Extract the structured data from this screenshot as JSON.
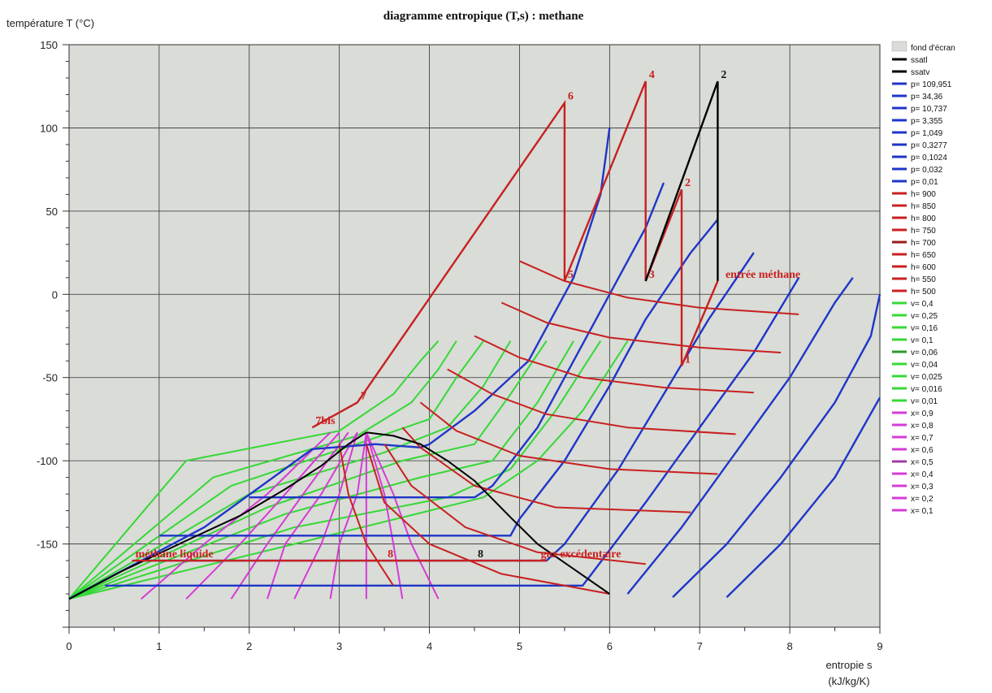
{
  "chart_data": {
    "type": "line",
    "title": "diagramme entropique (T,s) : methane",
    "ylabel": "température T (°C)",
    "xlabel_line1": "entropie s",
    "xlabel_line2": "(kJ/kg/K)",
    "xlim": [
      0,
      9
    ],
    "ylim": [
      -200,
      150
    ],
    "xticks": [
      0,
      1,
      2,
      3,
      4,
      5,
      6,
      7,
      8,
      9
    ],
    "yticks": [
      150,
      100,
      50,
      0,
      -50,
      -100,
      -150
    ],
    "grid": true,
    "legend_position": "right",
    "background_color": "#d9dcd7",
    "legend": [
      {
        "label": "fond d'écran",
        "color": "#d9dcd7",
        "kind": "box"
      },
      {
        "label": "ssatl",
        "color": "#000000"
      },
      {
        "label": "ssatv",
        "color": "#000000"
      },
      {
        "label": "p= 109,951",
        "color": "#1f35c8"
      },
      {
        "label": "p= 34,36",
        "color": "#1f35c8"
      },
      {
        "label": "p= 10,737",
        "color": "#1f35c8"
      },
      {
        "label": "p= 3,355",
        "color": "#1f35c8"
      },
      {
        "label": "p= 1,049",
        "color": "#1f35c8"
      },
      {
        "label": "p= 0,3277",
        "color": "#1f35c8"
      },
      {
        "label": "p= 0,1024",
        "color": "#1f35c8"
      },
      {
        "label": "p= 0,032",
        "color": "#1f35c8"
      },
      {
        "label": "p= 0,01",
        "color": "#1f35c8"
      },
      {
        "label": "h= 900",
        "color": "#c82020"
      },
      {
        "label": "h= 850",
        "color": "#c82020"
      },
      {
        "label": "h= 800",
        "color": "#c82020"
      },
      {
        "label": "h= 750",
        "color": "#c82020"
      },
      {
        "label": "h= 700",
        "color": "#9a1a1a"
      },
      {
        "label": "h= 650",
        "color": "#c82020"
      },
      {
        "label": "h= 600",
        "color": "#c82020"
      },
      {
        "label": "h= 550",
        "color": "#c82020"
      },
      {
        "label": "h= 500",
        "color": "#c82020"
      },
      {
        "label": "v= 0,4",
        "color": "#35d835"
      },
      {
        "label": "v= 0,25",
        "color": "#35d835"
      },
      {
        "label": "v= 0,16",
        "color": "#35d835"
      },
      {
        "label": "v= 0,1",
        "color": "#35d835"
      },
      {
        "label": "v= 0,06",
        "color": "#2a9a2a"
      },
      {
        "label": "v= 0,04",
        "color": "#35d835"
      },
      {
        "label": "v= 0,025",
        "color": "#35d835"
      },
      {
        "label": "v= 0,016",
        "color": "#35d835"
      },
      {
        "label": "v= 0,01",
        "color": "#35d835"
      },
      {
        "label": "x= 0,9",
        "color": "#d63bd6"
      },
      {
        "label": "x= 0,8",
        "color": "#d63bd6"
      },
      {
        "label": "x= 0,7",
        "color": "#d63bd6"
      },
      {
        "label": "x= 0,6",
        "color": "#d63bd6"
      },
      {
        "label": "x= 0,5",
        "color": "#a23aa2"
      },
      {
        "label": "x= 0,4",
        "color": "#d63bd6"
      },
      {
        "label": "x= 0,3",
        "color": "#d63bd6"
      },
      {
        "label": "x= 0,2",
        "color": "#d63bd6"
      },
      {
        "label": "x= 0,1",
        "color": "#d63bd6"
      }
    ],
    "saturation_liquid": [
      [
        0,
        -183
      ],
      [
        0.6,
        -166
      ],
      [
        1.3,
        -148
      ],
      [
        1.9,
        -133
      ],
      [
        2.4,
        -117
      ],
      [
        2.8,
        -103
      ],
      [
        3.1,
        -90
      ],
      [
        3.3,
        -83
      ]
    ],
    "saturation_vapor": [
      [
        3.3,
        -83
      ],
      [
        3.6,
        -85
      ],
      [
        3.9,
        -90
      ],
      [
        4.2,
        -100
      ],
      [
        4.5,
        -112
      ],
      [
        4.9,
        -134
      ],
      [
        5.2,
        -150
      ],
      [
        5.6,
        -165
      ],
      [
        6.0,
        -180
      ]
    ],
    "isobars": [
      {
        "name": "p= 109,951",
        "points": [
          [
            0,
            -183
          ],
          [
            1.5,
            -140
          ],
          [
            2.7,
            -93
          ],
          [
            3.4,
            -90
          ],
          [
            3.9,
            -92
          ],
          [
            4.0,
            -90
          ],
          [
            4.5,
            -70
          ],
          [
            5.1,
            -40
          ],
          [
            5.6,
            10
          ],
          [
            5.9,
            60
          ],
          [
            6.0,
            100
          ]
        ]
      },
      {
        "name": "p= 34,36",
        "points": [
          [
            2.0,
            -122
          ],
          [
            4.5,
            -122
          ],
          [
            4.7,
            -115
          ],
          [
            5.2,
            -80
          ],
          [
            5.6,
            -40
          ],
          [
            6.0,
            0
          ],
          [
            6.4,
            40
          ],
          [
            6.6,
            67
          ]
        ]
      },
      {
        "name": "p= 10,737",
        "points": [
          [
            1.0,
            -145
          ],
          [
            4.9,
            -145
          ],
          [
            5.0,
            -135
          ],
          [
            5.5,
            -100
          ],
          [
            6.0,
            -55
          ],
          [
            6.4,
            -15
          ],
          [
            6.9,
            25
          ],
          [
            7.2,
            45
          ]
        ]
      },
      {
        "name": "p= 3,355",
        "points": [
          [
            0.8,
            -160
          ],
          [
            5.3,
            -160
          ],
          [
            5.5,
            -150
          ],
          [
            6.1,
            -105
          ],
          [
            6.6,
            -60
          ],
          [
            7.1,
            -15
          ],
          [
            7.6,
            25
          ]
        ]
      },
      {
        "name": "p= 1,049",
        "points": [
          [
            0.4,
            -175
          ],
          [
            5.7,
            -175
          ],
          [
            5.8,
            -168
          ],
          [
            6.4,
            -125
          ],
          [
            7.0,
            -80
          ],
          [
            7.6,
            -35
          ],
          [
            8.1,
            10
          ]
        ]
      },
      {
        "name": "p= 0,3277",
        "points": [
          [
            6.2,
            -180
          ],
          [
            6.8,
            -140
          ],
          [
            7.4,
            -95
          ],
          [
            8.0,
            -50
          ],
          [
            8.5,
            -5
          ],
          [
            8.7,
            10
          ]
        ]
      },
      {
        "name": "p= 0,1024",
        "points": [
          [
            6.7,
            -182
          ],
          [
            7.3,
            -150
          ],
          [
            7.9,
            -110
          ],
          [
            8.5,
            -65
          ],
          [
            8.9,
            -25
          ],
          [
            9.0,
            0
          ]
        ]
      },
      {
        "name": "p= 0,032",
        "points": [
          [
            7.3,
            -182
          ],
          [
            7.9,
            -150
          ],
          [
            8.5,
            -110
          ],
          [
            9.0,
            -62
          ]
        ]
      }
    ],
    "isenthalps": [
      {
        "name": "h= 900",
        "points": [
          [
            5.0,
            20
          ],
          [
            5.5,
            8
          ],
          [
            6.2,
            -2
          ],
          [
            7.0,
            -8
          ],
          [
            8.1,
            -12
          ]
        ]
      },
      {
        "name": "h= 850",
        "points": [
          [
            4.8,
            -5
          ],
          [
            5.3,
            -17
          ],
          [
            6.0,
            -26
          ],
          [
            7.0,
            -32
          ],
          [
            7.9,
            -35
          ]
        ]
      },
      {
        "name": "h= 800",
        "points": [
          [
            4.5,
            -25
          ],
          [
            5.0,
            -38
          ],
          [
            5.7,
            -50
          ],
          [
            6.6,
            -56
          ],
          [
            7.6,
            -59
          ]
        ]
      },
      {
        "name": "h= 750",
        "points": [
          [
            4.2,
            -45
          ],
          [
            4.7,
            -60
          ],
          [
            5.3,
            -72
          ],
          [
            6.2,
            -80
          ],
          [
            7.4,
            -84
          ]
        ]
      },
      {
        "name": "h= 700",
        "points": [
          [
            3.9,
            -65
          ],
          [
            4.3,
            -82
          ],
          [
            5.0,
            -97
          ],
          [
            6.0,
            -105
          ],
          [
            7.2,
            -108
          ]
        ]
      },
      {
        "name": "h= 650",
        "points": [
          [
            3.7,
            -80
          ],
          [
            3.9,
            -92
          ],
          [
            4.5,
            -115
          ],
          [
            5.4,
            -128
          ],
          [
            6.9,
            -131
          ]
        ]
      },
      {
        "name": "h= 600",
        "points": [
          [
            3.5,
            -90
          ],
          [
            3.8,
            -115
          ],
          [
            4.4,
            -140
          ],
          [
            5.2,
            -155
          ],
          [
            6.4,
            -162
          ]
        ]
      },
      {
        "name": "h= 550",
        "points": [
          [
            3.3,
            -90
          ],
          [
            3.5,
            -125
          ],
          [
            4.0,
            -150
          ],
          [
            4.8,
            -168
          ],
          [
            6.0,
            -180
          ]
        ]
      },
      {
        "name": "h= 500",
        "points": [
          [
            3.0,
            -90
          ],
          [
            3.1,
            -120
          ],
          [
            3.3,
            -150
          ],
          [
            3.6,
            -175
          ]
        ]
      }
    ],
    "isochores": [
      {
        "name": "v= 0,4",
        "points": [
          [
            0,
            -183
          ],
          [
            2.5,
            -150
          ],
          [
            4.6,
            -122
          ],
          [
            5.2,
            -100
          ],
          [
            5.7,
            -70
          ],
          [
            6.2,
            -28
          ]
        ]
      },
      {
        "name": "v= 0,25",
        "points": [
          [
            0,
            -183
          ],
          [
            2.5,
            -140
          ],
          [
            4.2,
            -122
          ],
          [
            4.9,
            -105
          ],
          [
            5.4,
            -70
          ],
          [
            5.9,
            -28
          ]
        ]
      },
      {
        "name": "v= 0,16",
        "points": [
          [
            0,
            -183
          ],
          [
            2.4,
            -132
          ],
          [
            3.9,
            -110
          ],
          [
            4.7,
            -100
          ],
          [
            5.2,
            -65
          ],
          [
            5.6,
            -28
          ]
        ]
      },
      {
        "name": "v= 0,1",
        "points": [
          [
            0,
            -183
          ],
          [
            2.2,
            -128
          ],
          [
            3.7,
            -100
          ],
          [
            4.5,
            -90
          ],
          [
            4.9,
            -60
          ],
          [
            5.3,
            -28
          ]
        ]
      },
      {
        "name": "v= 0,06",
        "points": [
          [
            0,
            -183
          ],
          [
            2.0,
            -120
          ],
          [
            3.5,
            -95
          ],
          [
            4.2,
            -80
          ],
          [
            4.6,
            -55
          ],
          [
            4.9,
            -28
          ]
        ]
      },
      {
        "name": "v= 0,04",
        "points": [
          [
            0,
            -183
          ],
          [
            1.8,
            -115
          ],
          [
            3.3,
            -88
          ],
          [
            4.0,
            -75
          ],
          [
            4.3,
            -50
          ],
          [
            4.6,
            -28
          ]
        ]
      },
      {
        "name": "v= 0,025",
        "points": [
          [
            0,
            -183
          ],
          [
            1.6,
            -110
          ],
          [
            3.2,
            -85
          ],
          [
            3.8,
            -65
          ],
          [
            4.1,
            -45
          ],
          [
            4.3,
            -28
          ]
        ]
      },
      {
        "name": "v= 0,016",
        "points": [
          [
            0,
            -183
          ],
          [
            1.3,
            -100
          ],
          [
            3.0,
            -82
          ],
          [
            3.6,
            -60
          ],
          [
            3.9,
            -40
          ],
          [
            4.1,
            -28
          ]
        ]
      }
    ],
    "quality_lines": [
      {
        "name": "x= 0,9",
        "points": [
          [
            3.3,
            -83
          ],
          [
            3.6,
            -120
          ],
          [
            3.8,
            -150
          ],
          [
            4.1,
            -183
          ]
        ]
      },
      {
        "name": "x= 0,8",
        "points": [
          [
            3.3,
            -83
          ],
          [
            3.5,
            -120
          ],
          [
            3.6,
            -150
          ],
          [
            3.7,
            -183
          ]
        ]
      },
      {
        "name": "x= 0,7",
        "points": [
          [
            3.3,
            -83
          ],
          [
            3.3,
            -120
          ],
          [
            3.3,
            -150
          ],
          [
            3.3,
            -183
          ]
        ]
      },
      {
        "name": "x= 0,6",
        "points": [
          [
            3.3,
            -83
          ],
          [
            3.2,
            -120
          ],
          [
            3.0,
            -150
          ],
          [
            2.9,
            -183
          ]
        ]
      },
      {
        "name": "x= 0,5",
        "points": [
          [
            3.2,
            -83
          ],
          [
            3.0,
            -120
          ],
          [
            2.8,
            -150
          ],
          [
            2.5,
            -183
          ]
        ]
      },
      {
        "name": "x= 0,4",
        "points": [
          [
            3.2,
            -83
          ],
          [
            2.8,
            -120
          ],
          [
            2.4,
            -150
          ],
          [
            2.2,
            -183
          ]
        ]
      },
      {
        "name": "x= 0,3",
        "points": [
          [
            3.1,
            -83
          ],
          [
            2.6,
            -120
          ],
          [
            2.2,
            -150
          ],
          [
            1.8,
            -183
          ]
        ]
      },
      {
        "name": "x= 0,2",
        "points": [
          [
            3.0,
            -83
          ],
          [
            2.4,
            -120
          ],
          [
            1.9,
            -150
          ],
          [
            1.3,
            -183
          ]
        ]
      },
      {
        "name": "x= 0,1",
        "points": [
          [
            2.9,
            -83
          ],
          [
            2.2,
            -120
          ],
          [
            1.5,
            -150
          ],
          [
            0.8,
            -183
          ]
        ]
      }
    ],
    "process_cycle": {
      "color": "#c82020",
      "points": [
        [
          2.7,
          -80
        ],
        [
          3.2,
          -65
        ],
        [
          5.5,
          115
        ],
        [
          5.5,
          8
        ],
        [
          6.4,
          128
        ],
        [
          6.4,
          8
        ],
        [
          6.8,
          63
        ],
        [
          6.8,
          -43
        ],
        [
          7.2,
          8
        ]
      ]
    },
    "black_compressor_line": [
      [
        6.4,
        8
      ],
      [
        7.2,
        128
      ],
      [
        7.2,
        8
      ]
    ],
    "liquid_line_segments": [
      {
        "name": "méthane liquide",
        "points": [
          [
            0.7,
            -160
          ],
          [
            5.3,
            -160
          ]
        ]
      }
    ],
    "process_labels": [
      {
        "text": "6",
        "x": 5.5,
        "y": 115
      },
      {
        "text": "4",
        "x": 6.4,
        "y": 128
      },
      {
        "text": "2",
        "x": 7.2,
        "y": 128,
        "color": "#111111"
      },
      {
        "text": "2",
        "x": 6.8,
        "y": 63
      },
      {
        "text": "5",
        "x": 5.5,
        "y": 8
      },
      {
        "text": "3",
        "x": 6.4,
        "y": 8
      },
      {
        "text": "1",
        "x": 6.8,
        "y": -43
      },
      {
        "text": "entrée méthane",
        "x": 7.25,
        "y": 8
      },
      {
        "text": "7",
        "x": 3.2,
        "y": -65
      },
      {
        "text": "7bis",
        "x": 2.7,
        "y": -80
      },
      {
        "text": "méthane liquide",
        "x": 0.7,
        "y": -160
      },
      {
        "text": "8",
        "x": 3.5,
        "y": -160
      },
      {
        "text": "8",
        "x": 4.5,
        "y": -160,
        "color": "#111111"
      },
      {
        "text": "gaz excédentaire",
        "x": 5.2,
        "y": -160
      }
    ]
  }
}
